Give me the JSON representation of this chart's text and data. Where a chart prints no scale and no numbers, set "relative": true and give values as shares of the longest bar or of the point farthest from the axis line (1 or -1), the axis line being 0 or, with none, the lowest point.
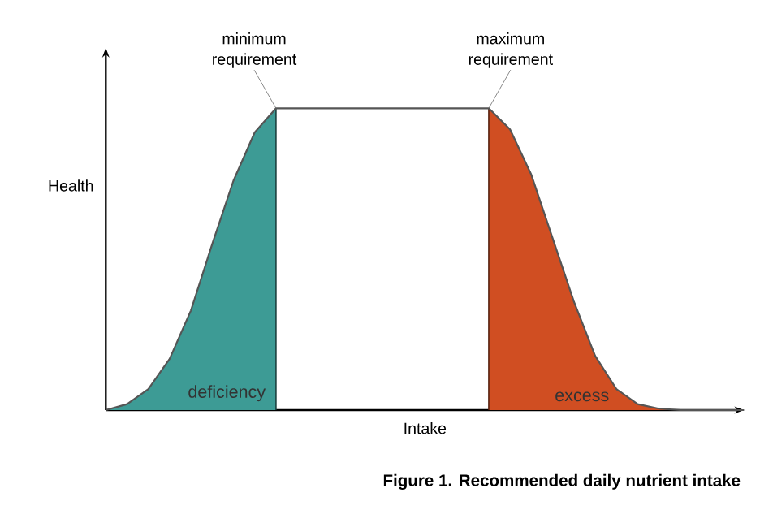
{
  "chart_data": {
    "type": "line",
    "relative": true,
    "xlabel": "Intake",
    "ylabel": "Health",
    "legend": false,
    "categories": [
      null,
      null,
      null,
      null,
      null,
      null,
      null,
      null,
      null,
      null,
      null,
      null,
      null,
      null,
      null,
      null,
      null,
      null,
      null,
      null,
      null,
      null,
      null,
      null,
      null,
      null,
      null,
      null,
      null,
      null,
      null
    ],
    "series": [
      {
        "name": "deficiency",
        "type": "area",
        "color": "#3d9b95",
        "values": [
          0,
          0.02,
          0.07,
          0.17,
          0.33,
          0.55,
          0.76,
          0.92,
          1,
          null,
          null,
          null,
          null,
          null,
          null,
          null,
          null,
          null,
          null,
          null,
          null,
          null,
          null,
          null,
          null,
          null,
          null,
          null,
          null,
          null,
          null
        ]
      },
      {
        "name": "excess",
        "type": "area",
        "color": "#d04e22",
        "values": [
          null,
          null,
          null,
          null,
          null,
          null,
          null,
          null,
          null,
          null,
          null,
          null,
          null,
          null,
          null,
          null,
          null,
          null,
          1,
          0.93,
          0.78,
          0.57,
          0.36,
          0.18,
          0.07,
          0.02,
          0.005,
          0,
          0,
          0,
          0
        ]
      },
      {
        "color": "#555555",
        "values": [
          0,
          0.02,
          0.07,
          0.17,
          0.33,
          0.55,
          0.76,
          0.92,
          1,
          1,
          1,
          1,
          1,
          1,
          1,
          1,
          1,
          1,
          1,
          0.93,
          0.78,
          0.57,
          0.36,
          0.18,
          0.07,
          0.02,
          0.005,
          0,
          0,
          0,
          0
        ]
      }
    ],
    "annotations": [
      "minimum requirement",
      "maximum requirement",
      "**Figure 1. Recommended daily nutrient intake**"
    ]
  }
}
